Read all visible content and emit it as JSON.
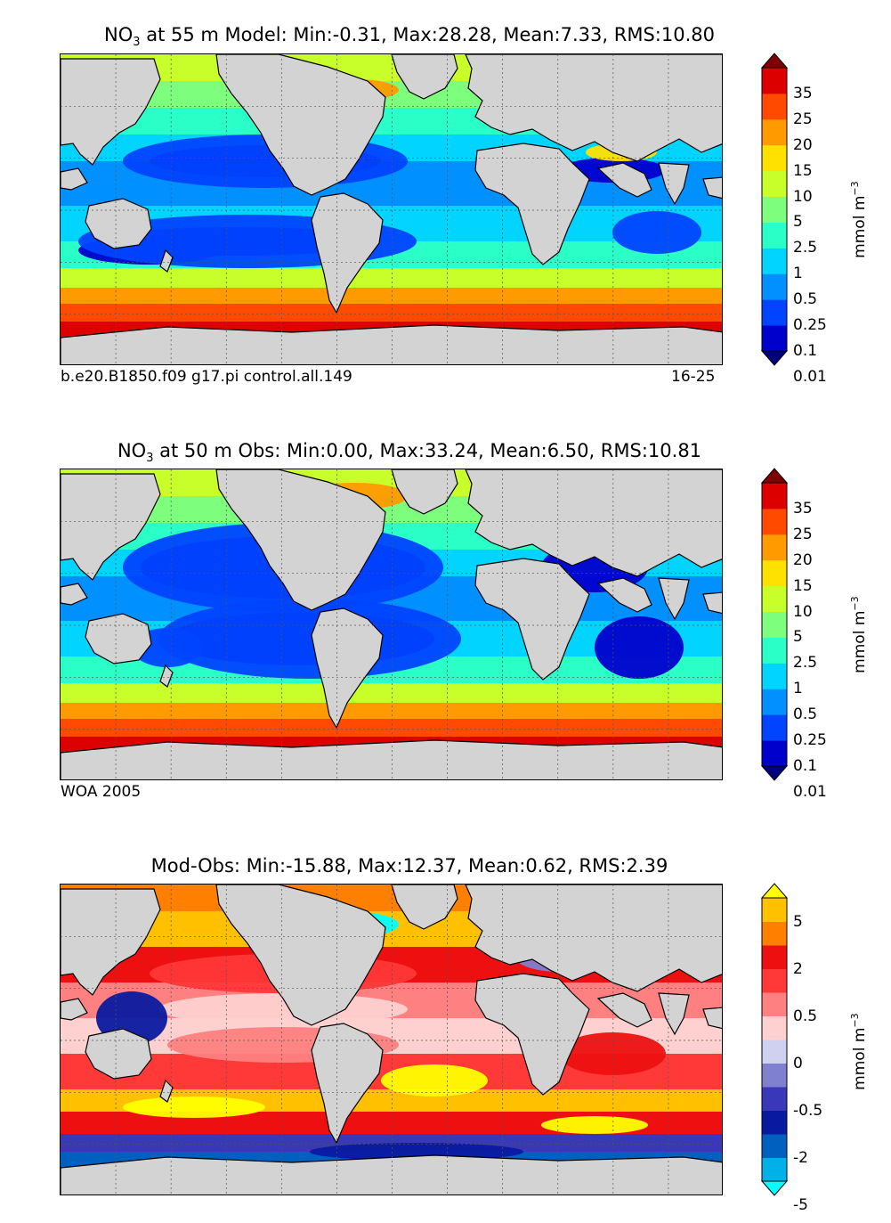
{
  "panels": [
    {
      "title_prefix": "NO",
      "title_sub": "3",
      "title_rest": " at 55 m Model: Min:-0.31, Max:28.28, Mean:7.33, RMS:10.80",
      "caption_left": "b.e20.B1850.f09 g17.pi control.all.149",
      "caption_right": "16-25",
      "colorbar_ticks": [
        "35",
        "25",
        "20",
        "15",
        "10",
        "5",
        "2.5",
        "1",
        "0.5",
        "0.25",
        "0.1",
        "0.01"
      ],
      "unit": "mmol m",
      "unit_sup": "−3"
    },
    {
      "title_prefix": "NO",
      "title_sub": "3",
      "title_rest": " at 50 m Obs: Min:0.00, Max:33.24, Mean:6.50, RMS:10.81",
      "caption_left": "WOA 2005",
      "caption_right": "",
      "colorbar_ticks": [
        "35",
        "25",
        "20",
        "15",
        "10",
        "5",
        "2.5",
        "1",
        "0.5",
        "0.25",
        "0.1",
        "0.01"
      ],
      "unit": "mmol m",
      "unit_sup": "−3"
    },
    {
      "title_prefix": "",
      "title_sub": "",
      "title_rest": "Mod-Obs: Min:-15.88, Max:12.37, Mean:0.62, RMS:2.39",
      "caption_left": "",
      "caption_right": "",
      "colorbar_ticks": [
        "5",
        "2",
        "0.5",
        "0",
        "-0.5",
        "-2",
        "-5"
      ],
      "unit": "mmol m",
      "unit_sup": "−3"
    }
  ],
  "colors": {
    "land": "#d3d3d3",
    "nitrate_scale": [
      "#00007f",
      "#0000cd",
      "#0044ff",
      "#0090ff",
      "#00d4ff",
      "#2affc8",
      "#7dff7d",
      "#c8ff2a",
      "#ffe100",
      "#ff9a00",
      "#ff4a00",
      "#dd0000",
      "#7f0000"
    ],
    "diff_scale": [
      "#00ffff",
      "#00b0e8",
      "#0060c0",
      "#0a1aa0",
      "#3838b8",
      "#8080d0",
      "#d0d0f0",
      "#ffd0d0",
      "#ff8080",
      "#ff3838",
      "#ee1010",
      "#ff8000",
      "#ffc000",
      "#ffff00"
    ]
  }
}
